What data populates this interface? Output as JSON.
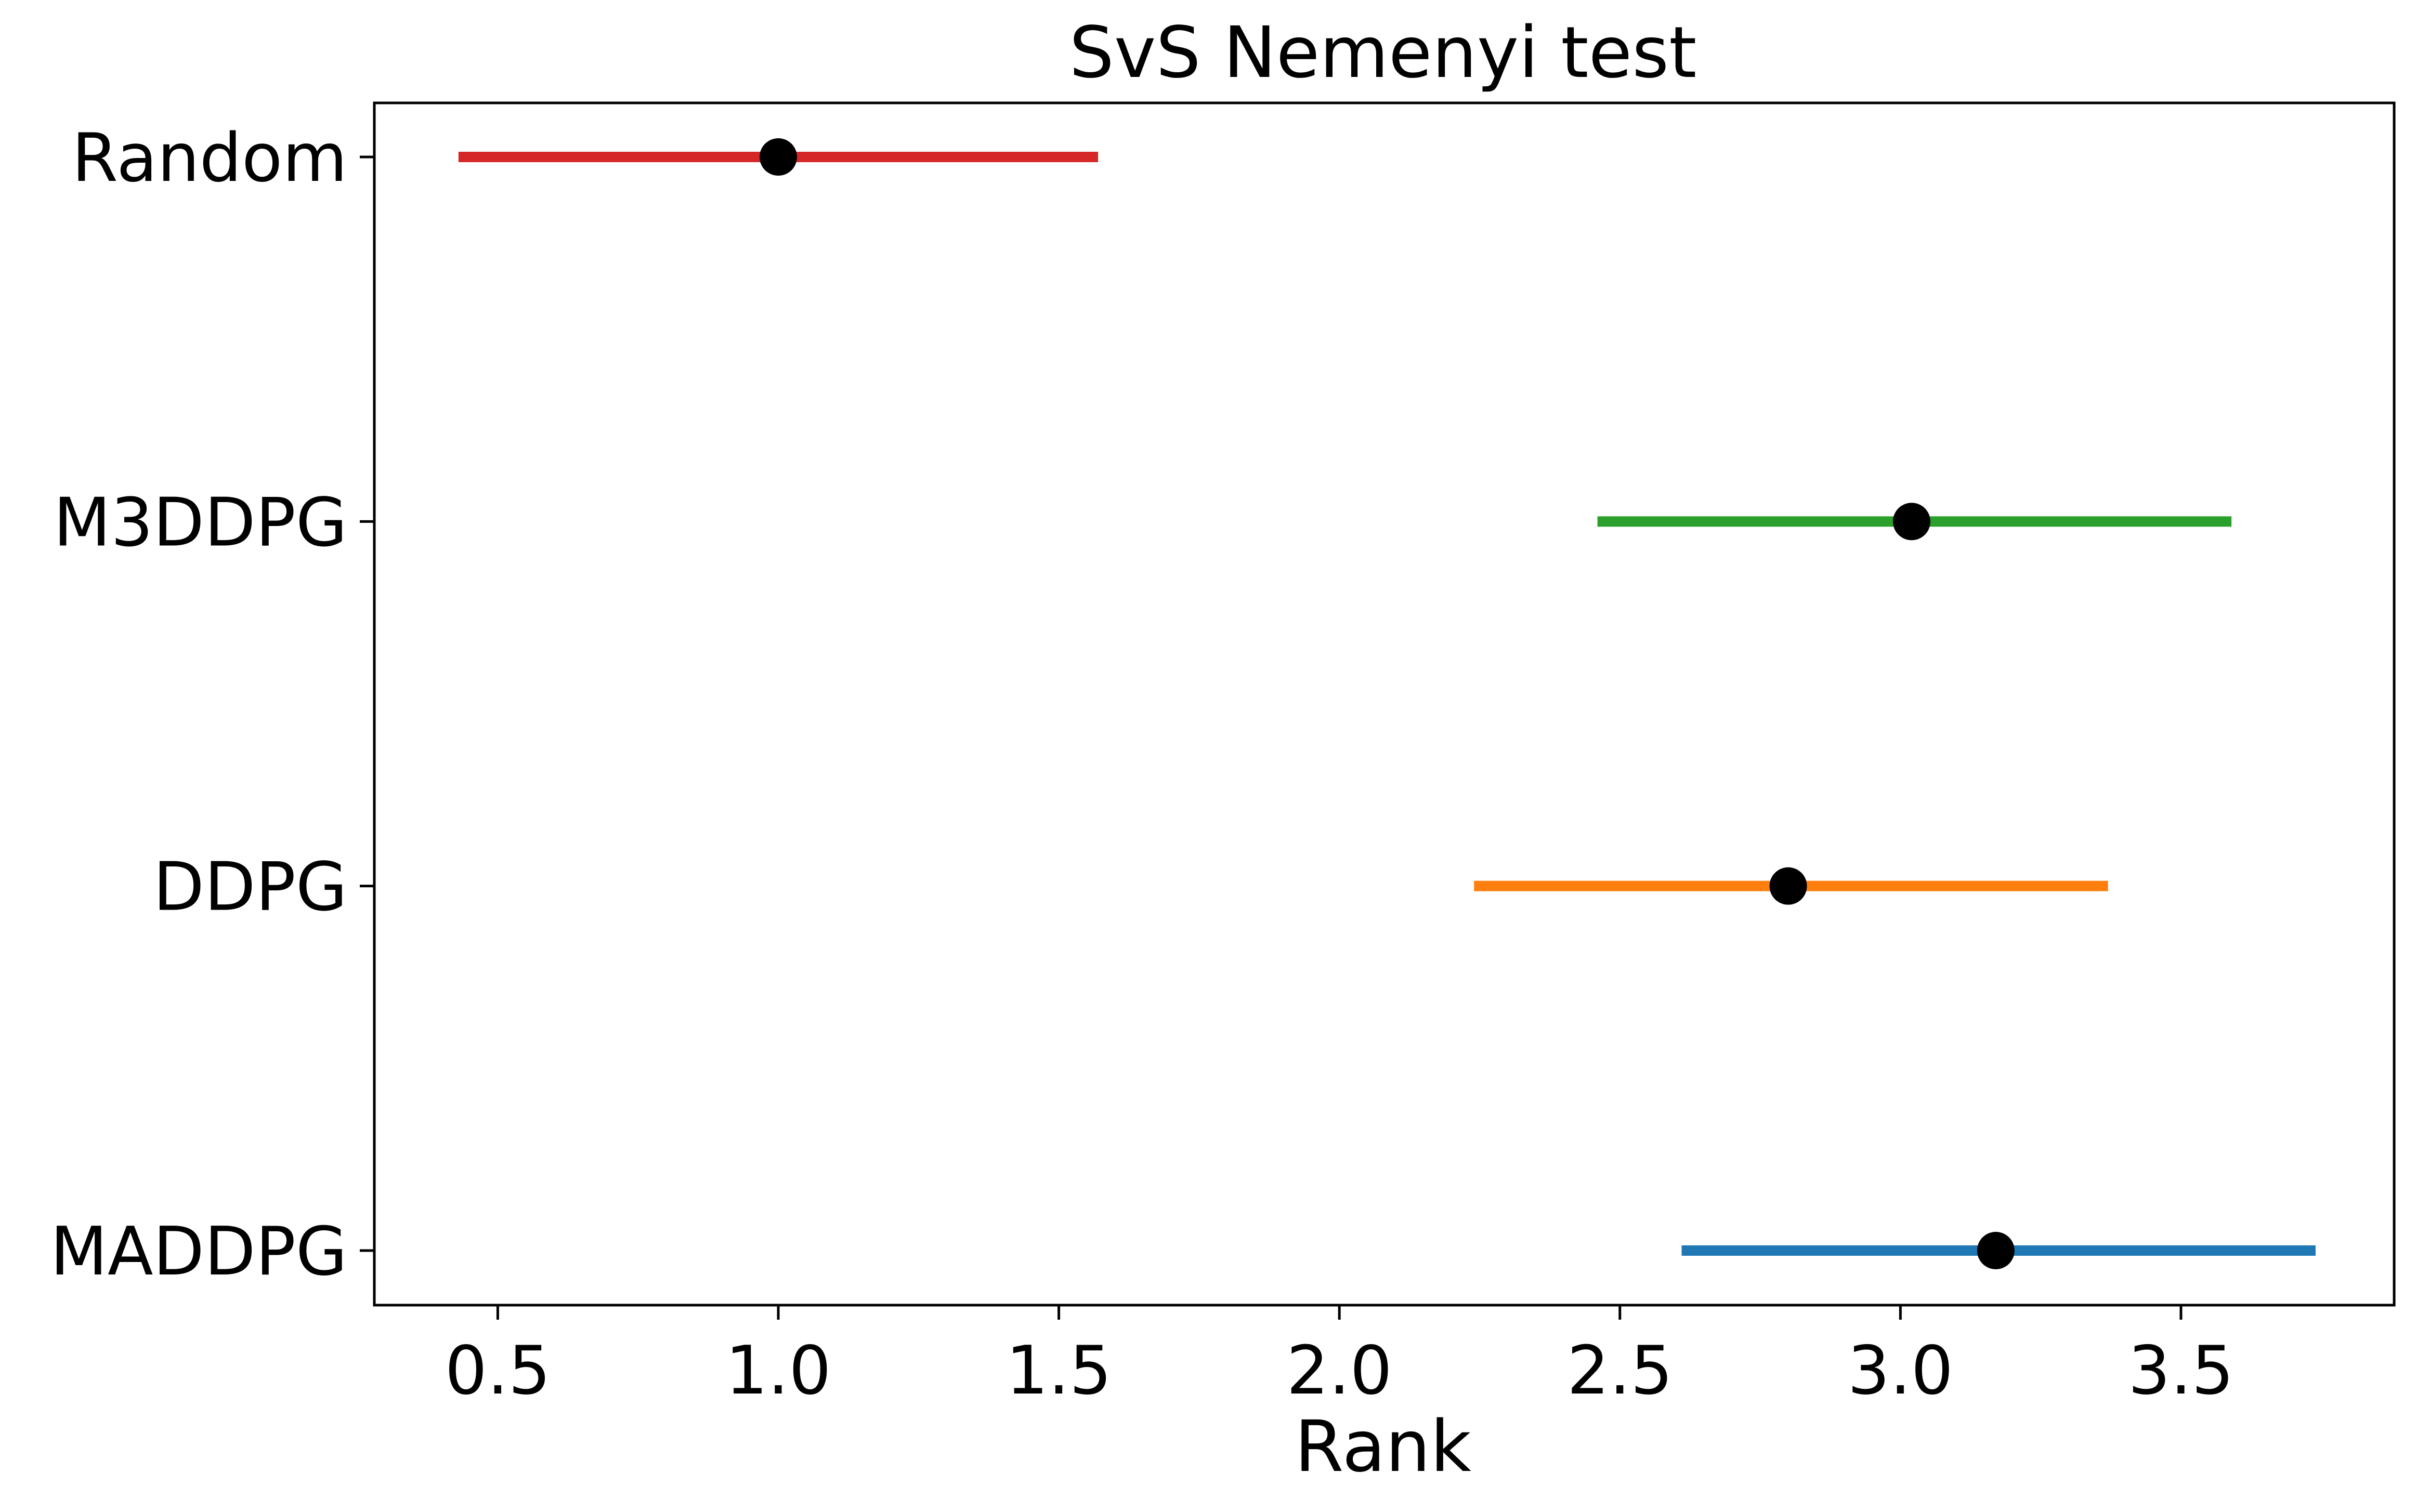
{
  "chart_data": {
    "type": "interval",
    "title": "SvS Nemenyi test",
    "xlabel": "Rank",
    "ylabel": "",
    "xlim": [
      0.28,
      3.88
    ],
    "xticks": [
      "0.5",
      "1.0",
      "1.5",
      "2.0",
      "2.5",
      "3.0",
      "3.5"
    ],
    "grid": false,
    "legend": "none",
    "marker_color": "#000000",
    "series": [
      {
        "name": "Random",
        "rank": 1.0,
        "low": 0.43,
        "high": 1.57,
        "color": "#d62728"
      },
      {
        "name": "M3DDPG",
        "rank": 3.02,
        "low": 2.46,
        "high": 3.59,
        "color": "#2ca02c"
      },
      {
        "name": "DDPG",
        "rank": 2.8,
        "low": 2.24,
        "high": 3.37,
        "color": "#ff7f0e"
      },
      {
        "name": "MADDPG",
        "rank": 3.17,
        "low": 2.61,
        "high": 3.74,
        "color": "#1f77b4"
      }
    ]
  }
}
